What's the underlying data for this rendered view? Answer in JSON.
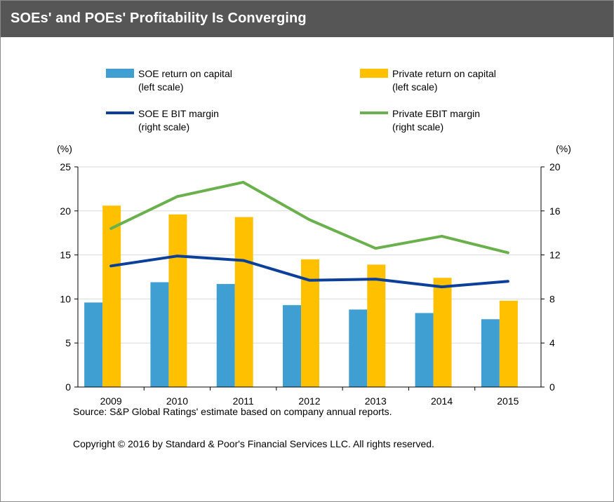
{
  "header": {
    "title": "SOEs' and POEs' Profitability Is Converging"
  },
  "chart_data": {
    "type": "bar",
    "categories": [
      "2009",
      "2010",
      "2011",
      "2012",
      "2013",
      "2014",
      "2015"
    ],
    "left_axis": {
      "unit_label": "(%)",
      "range": [
        0,
        25
      ],
      "ticks": [
        "0",
        "5",
        "10",
        "15",
        "20",
        "25"
      ]
    },
    "right_axis": {
      "unit_label": "(%)",
      "range": [
        0,
        20
      ],
      "ticks": [
        "0",
        "4",
        "8",
        "12",
        "16",
        "20"
      ]
    },
    "series": [
      {
        "name": "SOE return on capital",
        "note": "(left scale)",
        "kind": "bar",
        "axis": "left",
        "color": "#3f9fd2",
        "values": [
          9.6,
          11.9,
          11.7,
          9.3,
          8.8,
          8.4,
          7.7
        ]
      },
      {
        "name": "Private return on capital",
        "note": "(left scale)",
        "kind": "bar",
        "axis": "left",
        "color": "#ffc000",
        "values": [
          20.6,
          19.6,
          19.3,
          14.5,
          13.9,
          12.4,
          9.8
        ]
      },
      {
        "name": "SOE E BIT margin",
        "note": "(right scale)",
        "kind": "line",
        "axis": "right",
        "color": "#0b3f9a",
        "values": [
          11.0,
          11.9,
          11.5,
          9.7,
          9.8,
          9.1,
          9.6
        ]
      },
      {
        "name": "Private EBIT margin",
        "note": "(right scale)",
        "kind": "line",
        "axis": "right",
        "color": "#6ab04c",
        "values": [
          14.4,
          17.3,
          18.6,
          15.2,
          12.6,
          13.7,
          12.2
        ]
      }
    ],
    "grid": true,
    "legend_position": "top"
  },
  "footer": {
    "source": "Source: S&P Global Ratings' estimate based on company annual reports.",
    "copyright": "Copyright © 2016 by Standard & Poor's Financial Services LLC. All rights reserved."
  }
}
